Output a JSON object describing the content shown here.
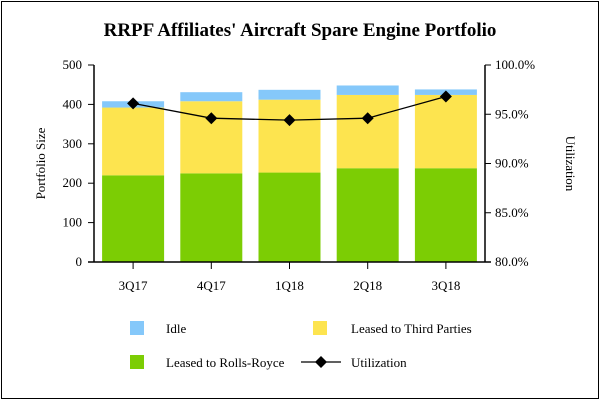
{
  "chart_data": {
    "type": "bar",
    "stacked": true,
    "title": "RRPF Affiliates' Aircraft Spare Engine Portfolio",
    "xlabel": "",
    "ylabel": "Portfolio Size",
    "y2label": "Utilization",
    "ylim": [
      0,
      500
    ],
    "y2lim": [
      80,
      100
    ],
    "yticks": [
      "0",
      "100",
      "200",
      "300",
      "400",
      "500"
    ],
    "y2ticks": [
      "80.0%",
      "85.0%",
      "90.0%",
      "95.0%",
      "100.0%"
    ],
    "categories": [
      "3Q17",
      "4Q17",
      "1Q18",
      "2Q18",
      "3Q18"
    ],
    "series": [
      {
        "name": "Leased to Rolls-Royce",
        "color": "#7ccd04",
        "values": [
          220,
          225,
          227,
          238,
          238
        ]
      },
      {
        "name": "Leased to Third Parties",
        "color": "#fde44f",
        "values": [
          172,
          183,
          185,
          186,
          186
        ]
      },
      {
        "name": "Idle",
        "color": "#85c8fa",
        "values": [
          16,
          23,
          25,
          24,
          14
        ]
      }
    ],
    "line_series": {
      "name": "Utilization",
      "axis": "right",
      "color": "#000000",
      "marker": "diamond",
      "values": [
        96.1,
        94.6,
        94.4,
        94.6,
        96.8
      ]
    },
    "grid": false,
    "legend_placement": "bottom",
    "legend_order": [
      "Idle",
      "Leased to Third Parties",
      "Leased to Rolls-Royce",
      "Utilization"
    ]
  }
}
